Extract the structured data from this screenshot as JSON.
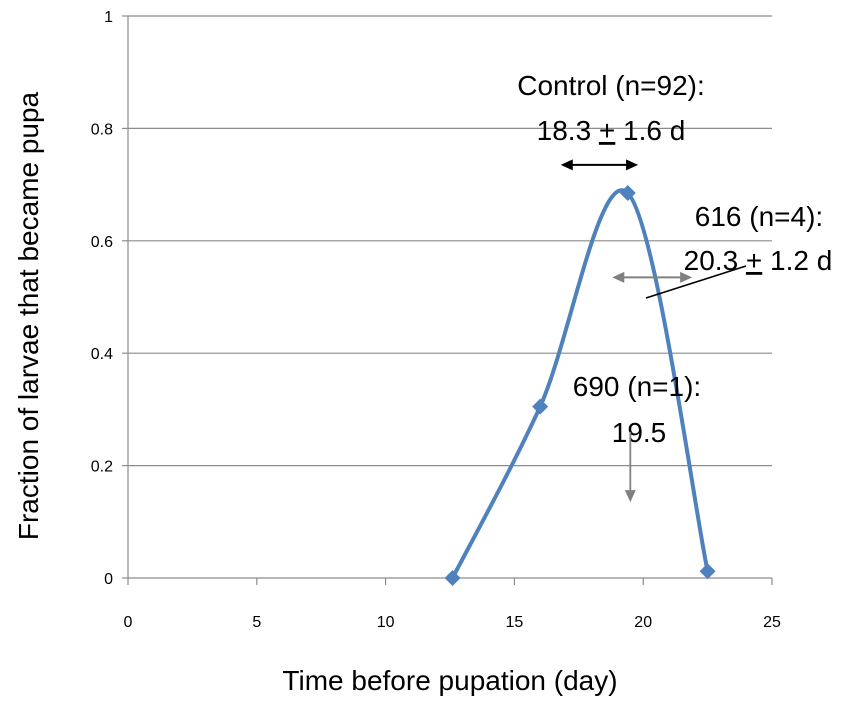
{
  "chart_data": {
    "type": "line",
    "xlabel": "Time before pupation (day)",
    "ylabel": "Fraction of larvae that became pupa",
    "xlim": [
      0,
      25
    ],
    "ylim": [
      0,
      1
    ],
    "x_ticks": [
      "0",
      "5",
      "10",
      "15",
      "20",
      "25"
    ],
    "y_ticks": [
      "0",
      "0.2",
      "0.4",
      "0.6",
      "0.8",
      "1"
    ],
    "grid": "horizontal",
    "series": [
      {
        "x": [
          12.6,
          16.0,
          19.4,
          22.5
        ],
        "y": [
          0.0,
          0.305,
          0.685,
          0.012
        ],
        "color": "#4f81bd",
        "smooth": true,
        "marker": "diamond"
      }
    ],
    "annotations": [
      {
        "lines": [
          "Control (n=92):",
          "18.3 ",
          "+",
          " 1.6 d"
        ],
        "arrow": {
          "x1": 16.8,
          "x2": 19.8,
          "y": 0.735,
          "color": "#000000",
          "double": true
        }
      },
      {
        "lines": [
          "616 (n=4):",
          "20.3 ",
          "+",
          " 1.2 d"
        ],
        "arrow": {
          "x1": 18.8,
          "x2": 21.9,
          "y": 0.535,
          "color": "#808080",
          "double": true
        }
      },
      {
        "lines": [
          "690 (n=1):",
          "19.5"
        ],
        "arrow": {
          "x": 19.5,
          "y1": 0.26,
          "y2": 0.135,
          "color": "#808080"
        }
      }
    ]
  }
}
